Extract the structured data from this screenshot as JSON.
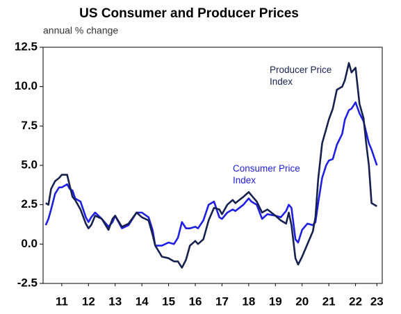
{
  "chart_data": {
    "type": "line",
    "title": "US Consumer and Producer Prices",
    "subtitle": "annual % change",
    "x": [
      2010.9,
      2011.0,
      2011.1,
      2011.25,
      2011.4,
      2011.5,
      2011.7,
      2011.8,
      2011.9,
      2012.0,
      2012.2,
      2012.4,
      2012.5,
      2012.6,
      2012.75,
      2013.0,
      2013.25,
      2013.4,
      2013.5,
      2013.75,
      2014.0,
      2014.3,
      2014.5,
      2014.75,
      2014.9,
      2015.0,
      2015.25,
      2015.5,
      2015.7,
      2015.85,
      2016.0,
      2016.15,
      2016.3,
      2016.5,
      2016.6,
      2016.8,
      2017.0,
      2017.2,
      2017.4,
      2017.5,
      2017.7,
      2017.9,
      2018.0,
      2018.3,
      2018.5,
      2018.6,
      2018.8,
      2019.0,
      2019.2,
      2019.5,
      2019.7,
      2019.9,
      2020.0,
      2020.1,
      2020.25,
      2020.35,
      2020.5,
      2020.7,
      2020.9,
      2021.0,
      2021.1,
      2021.25,
      2021.4,
      2021.5,
      2021.65,
      2021.8,
      2022.0,
      2022.1,
      2022.25,
      2022.35,
      2022.5,
      2022.65,
      2022.8,
      2022.9,
      2023.0,
      2023.1,
      2023.3
    ],
    "series": [
      {
        "name": "Producer Price Index",
        "color": "#16214f",
        "values": [
          2.6,
          2.5,
          3.5,
          4.0,
          4.2,
          4.4,
          4.4,
          3.7,
          3.0,
          2.8,
          2.2,
          1.3,
          1.0,
          1.2,
          1.8,
          1.6,
          0.9,
          1.6,
          1.8,
          1.1,
          1.3,
          2.0,
          1.7,
          1.5,
          0.6,
          -0.1,
          -0.8,
          -0.9,
          -1.1,
          -1.1,
          -1.5,
          -1.0,
          -0.1,
          0.2,
          0.0,
          0.3,
          1.5,
          2.3,
          2.2,
          1.9,
          2.5,
          2.8,
          2.6,
          3.0,
          3.3,
          3.1,
          2.7,
          2.0,
          2.2,
          1.8,
          1.5,
          1.3,
          2.0,
          1.2,
          -0.9,
          -1.3,
          -0.8,
          0.0,
          0.8,
          1.7,
          4.1,
          6.4,
          7.3,
          7.9,
          8.6,
          9.8,
          10.0,
          10.4,
          11.5,
          10.9,
          11.2,
          8.9,
          8.0,
          6.4,
          5.0,
          2.6,
          2.4
        ]
      },
      {
        "name": "Consumer Price Index",
        "color": "#1f1fe6",
        "values": [
          1.2,
          1.6,
          2.2,
          3.2,
          3.6,
          3.6,
          3.8,
          3.5,
          3.4,
          2.9,
          2.7,
          1.7,
          1.4,
          1.7,
          2.0,
          1.6,
          1.1,
          1.4,
          1.8,
          1.0,
          1.2,
          2.0,
          2.0,
          1.7,
          0.9,
          -0.1,
          -0.1,
          0.1,
          0.0,
          0.4,
          1.4,
          1.0,
          1.0,
          1.1,
          1.0,
          1.5,
          2.5,
          2.7,
          1.7,
          1.6,
          2.0,
          2.2,
          2.1,
          2.5,
          2.9,
          2.7,
          2.5,
          1.6,
          1.9,
          1.8,
          1.7,
          2.1,
          2.5,
          2.3,
          0.3,
          0.1,
          0.9,
          1.3,
          1.2,
          1.4,
          2.6,
          4.2,
          5.0,
          5.3,
          5.4,
          6.3,
          7.0,
          7.9,
          8.5,
          8.6,
          9.0,
          8.3,
          7.8,
          7.1,
          6.4,
          6.0,
          5.0
        ]
      }
    ],
    "annotations": [
      {
        "lines": [
          "Producer Price",
          "Index"
        ],
        "color": "#16214f"
      },
      {
        "lines": [
          "Consumer Price",
          "Index"
        ],
        "color": "#1f1fe6"
      }
    ],
    "xlim": [
      2010.8,
      2023.5
    ],
    "xticks": [
      {
        "value": 2011.5,
        "label": "11"
      },
      {
        "value": 2012.5,
        "label": "12"
      },
      {
        "value": 2013.5,
        "label": "13"
      },
      {
        "value": 2014.5,
        "label": "14"
      },
      {
        "value": 2015.5,
        "label": "15"
      },
      {
        "value": 2016.5,
        "label": "16"
      },
      {
        "value": 2017.5,
        "label": "17"
      },
      {
        "value": 2018.5,
        "label": "18"
      },
      {
        "value": 2019.5,
        "label": "19"
      },
      {
        "value": 2020.5,
        "label": "20"
      },
      {
        "value": 2021.5,
        "label": "21"
      },
      {
        "value": 2022.5,
        "label": "22"
      },
      {
        "value": 2023.3,
        "label": "23"
      }
    ],
    "ylim": [
      -2.5,
      12.5
    ],
    "yticks": [
      12.5,
      {
        "value": 10,
        "label": "10.0"
      },
      7.5,
      {
        "value": 5,
        "label": "5.0"
      },
      2.5,
      {
        "value": 0,
        "label": "0.0"
      },
      -2.5
    ],
    "grid": false
  }
}
